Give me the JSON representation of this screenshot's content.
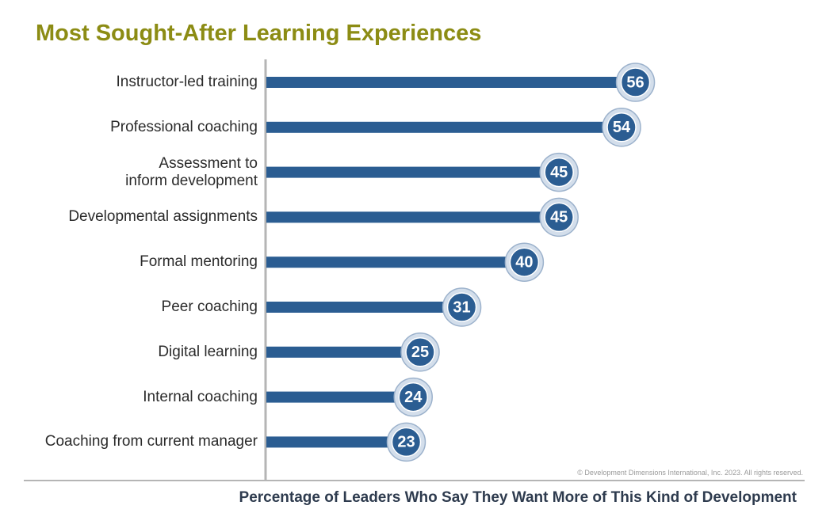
{
  "chart_data": {
    "type": "bar",
    "orientation": "horizontal",
    "title": "Most Sought-After Learning Experiences",
    "categories": [
      "Instructor-led training",
      "Professional coaching",
      "Assessment to\ninform development",
      "Developmental assignments",
      "Formal mentoring",
      "Peer coaching",
      "Digital learning",
      "Internal coaching",
      "Coaching from current manager"
    ],
    "values": [
      56,
      54,
      45,
      45,
      40,
      31,
      25,
      24,
      23
    ],
    "color": "#2b5d92",
    "x_label": "Percentage of Leaders Who Say They Want More of This Kind of Development",
    "footnote": "© Development Dimensions International, Inc. 2023. All rights reserved."
  }
}
